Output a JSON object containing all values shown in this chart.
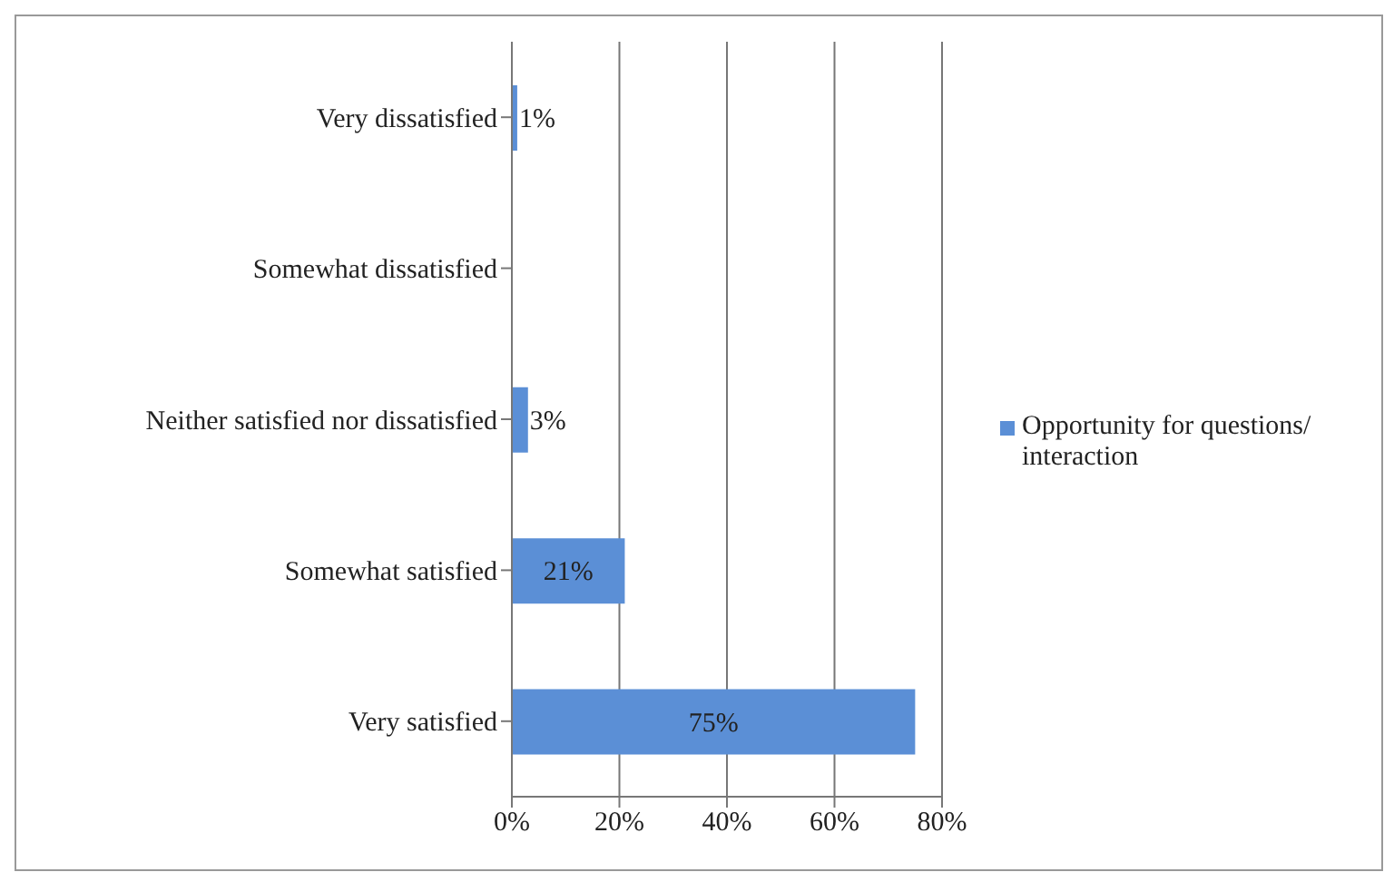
{
  "chart_data": {
    "type": "bar",
    "orientation": "horizontal",
    "categories": [
      "Very dissatisfied",
      "Somewhat dissatisfied",
      "Neither satisfied nor dissatisfied",
      "Somewhat satisfied",
      "Very satisfied"
    ],
    "series": [
      {
        "name": "Opportunity for questions/ interaction",
        "color": "#5b8fd6",
        "values": [
          1,
          0,
          3,
          21,
          75
        ],
        "value_labels": [
          "1%",
          null,
          "3%",
          "21%",
          "75%"
        ]
      }
    ],
    "xlim": [
      0,
      80
    ],
    "xticks": [
      {
        "value": 0,
        "label": "0%"
      },
      {
        "value": 20,
        "label": "20%"
      },
      {
        "value": 40,
        "label": "40%"
      },
      {
        "value": 60,
        "label": "60%"
      },
      {
        "value": 80,
        "label": "80%"
      }
    ],
    "grid": "x",
    "legend": "right"
  }
}
